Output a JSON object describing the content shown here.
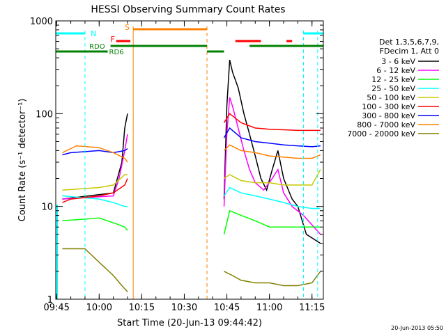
{
  "chart_data": {
    "type": "line",
    "title": "HESSI Observing Summary Count Rates",
    "xlabel": "Start Time (20-Jun-13 09:44:42)",
    "ylabel": "Count Rate (s⁻¹ detector⁻¹)",
    "y_scale": "log",
    "ylim": [
      1,
      1000
    ],
    "xlim": [
      "09:44:42",
      "11:19:00"
    ],
    "x_ticks": [
      "09:45",
      "10:00",
      "10:15",
      "10:30",
      "10:45",
      "11:00",
      "11:15"
    ],
    "y_ticks": [
      "1",
      "10",
      "100",
      "1000"
    ],
    "legend_header": [
      "Det 1,3,5,6,7,9,",
      "FDecim 1, Att 0"
    ],
    "series": [
      {
        "name": "3 - 6 keV",
        "color": "#000000",
        "x": [
          "09:47",
          "10:05",
          "10:08",
          "10:09",
          "10:10",
          "10:44",
          "10:45",
          "10:46",
          "10:47",
          "10:49",
          "10:51",
          "10:53",
          "10:55",
          "10:57",
          "10:59",
          "11:01",
          "11:03",
          "11:05",
          "11:08",
          "11:10",
          "11:13",
          "11:18"
        ],
        "y": [
          12,
          14,
          30,
          70,
          100,
          12,
          120,
          380,
          280,
          190,
          100,
          60,
          35,
          20,
          15,
          25,
          40,
          20,
          12,
          10,
          5,
          4
        ]
      },
      {
        "name": "6 - 12 keV",
        "color": "#ff00ff",
        "x": [
          "09:47",
          "10:05",
          "10:07",
          "10:08",
          "10:09",
          "10:10",
          "10:44",
          "10:45",
          "10:46",
          "10:47",
          "10:49",
          "10:51",
          "10:53",
          "10:55",
          "10:58",
          "11:01",
          "11:03",
          "11:05",
          "11:08",
          "11:12",
          "11:18"
        ],
        "y": [
          12,
          13,
          20,
          28,
          40,
          60,
          10,
          60,
          150,
          120,
          70,
          40,
          25,
          18,
          15,
          20,
          25,
          14,
          10,
          8,
          5
        ]
      },
      {
        "name": "12 - 25 keV",
        "color": "#00ff00",
        "x": [
          "09:47",
          "10:00",
          "10:06",
          "10:09",
          "10:10",
          "10:44",
          "10:46",
          "10:50",
          "10:55",
          "11:00",
          "11:05",
          "11:10",
          "11:15",
          "11:18"
        ],
        "y": [
          7,
          7.5,
          6.5,
          6,
          5.5,
          5,
          9,
          8,
          7,
          6,
          6,
          6,
          6,
          6
        ]
      },
      {
        "name": "25 - 50 keV",
        "color": "#00ffff",
        "x": [
          "09:47",
          "10:00",
          "10:05",
          "10:09",
          "10:10",
          "10:44",
          "10:46",
          "10:50",
          "10:55",
          "11:00",
          "11:05",
          "11:10",
          "11:15",
          "11:18"
        ],
        "y": [
          13,
          12,
          11,
          10,
          10,
          13,
          16,
          14,
          13,
          12,
          11,
          10,
          9.5,
          9.5
        ]
      },
      {
        "name": "50 - 100 keV",
        "color": "#c8c800",
        "x": [
          "09:47",
          "10:00",
          "10:05",
          "10:09",
          "10:10",
          "10:44",
          "10:46",
          "10:50",
          "10:55",
          "11:00",
          "11:05",
          "11:10",
          "11:15",
          "11:18"
        ],
        "y": [
          15,
          16,
          17,
          22,
          22,
          20,
          22,
          19,
          18,
          18,
          17,
          17,
          17,
          25
        ]
      },
      {
        "name": "100 - 300 keV",
        "color": "#ff0000",
        "x": [
          "09:47",
          "09:50",
          "10:00",
          "10:05",
          "10:09",
          "10:10",
          "10:44",
          "10:46",
          "10:50",
          "10:55",
          "11:00",
          "11:05",
          "11:10",
          "11:15",
          "11:18"
        ],
        "y": [
          11,
          12,
          13,
          14,
          17,
          20,
          80,
          100,
          80,
          70,
          68,
          67,
          66,
          66,
          66
        ]
      },
      {
        "name": "300 - 800 keV",
        "color": "#0000ff",
        "x": [
          "09:47",
          "09:50",
          "10:00",
          "10:05",
          "10:09",
          "10:10",
          "10:44",
          "10:46",
          "10:50",
          "10:55",
          "11:00",
          "11:05",
          "11:10",
          "11:15",
          "11:18"
        ],
        "y": [
          36,
          38,
          40,
          38,
          40,
          42,
          55,
          70,
          55,
          50,
          48,
          46,
          45,
          44,
          45
        ]
      },
      {
        "name": "800 - 7000 keV",
        "color": "#ff8000",
        "x": [
          "09:47",
          "09:52",
          "10:00",
          "10:05",
          "10:09",
          "10:10",
          "10:44",
          "10:46",
          "10:50",
          "10:55",
          "11:00",
          "11:05",
          "11:10",
          "11:15",
          "11:18"
        ],
        "y": [
          38,
          45,
          43,
          38,
          33,
          30,
          40,
          46,
          40,
          38,
          35,
          34,
          33,
          33,
          36
        ]
      },
      {
        "name": "7000 - 20000 keV",
        "color": "#808000",
        "x": [
          "09:47",
          "09:55",
          "10:00",
          "10:05",
          "10:08",
          "10:10",
          "10:44",
          "10:47",
          "10:50",
          "10:55",
          "11:00",
          "11:05",
          "11:10",
          "11:15",
          "11:18"
        ],
        "y": [
          3.5,
          3.5,
          2.5,
          1.8,
          1.4,
          1.2,
          2,
          1.8,
          1.6,
          1.5,
          1.5,
          1.4,
          1.4,
          1.5,
          2
        ]
      }
    ],
    "annotations": [
      {
        "text": "N",
        "color": "#00ffff"
      },
      {
        "text": "S",
        "color": "#ff8000"
      },
      {
        "text": "F",
        "color": "#ff0000"
      },
      {
        "text": "RDO",
        "color": "#008000"
      },
      {
        "text": "RD6",
        "color": "#008000"
      }
    ],
    "footer_timestamp": "20-Jun-2013 05:50"
  }
}
